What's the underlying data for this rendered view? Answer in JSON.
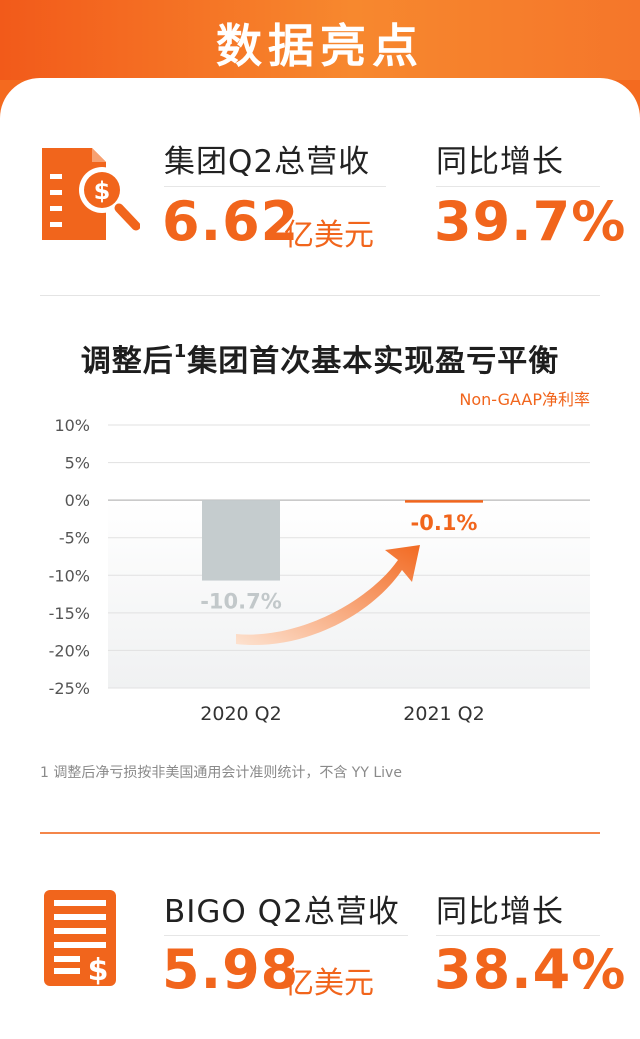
{
  "banner": {
    "title": "数据亮点"
  },
  "group_metric": {
    "label": "集团Q2总营收",
    "value": "6.62",
    "unit": "亿美元",
    "growth_label": "同比增长",
    "growth_value": "39.7%"
  },
  "bigo_metric": {
    "label": "BIGO Q2总营收",
    "value": "5.98",
    "unit": "亿美元",
    "growth_label": "同比增长",
    "growth_value": "38.4%"
  },
  "chart_title": {
    "prefix": "调整后",
    "sup": "1",
    "suffix": "集团首次基本实现盈亏平衡"
  },
  "chart_data": {
    "type": "bar",
    "title": "调整后1集团首次基本实现盈亏平衡",
    "legend": "Non-GAAP净利率",
    "categories": [
      "2020 Q2",
      "2021 Q2"
    ],
    "values": [
      -10.7,
      -0.1
    ],
    "data_labels": [
      "-10.7%",
      "-0.1%"
    ],
    "ylim": [
      -25,
      10
    ],
    "yticks": [
      10,
      5,
      0,
      -5,
      -10,
      -15,
      -20,
      -25
    ],
    "ytick_labels": [
      "10%",
      "5%",
      "0%",
      "-5%",
      "-10%",
      "-15%",
      "-20%",
      "-25%"
    ],
    "colors": [
      "#c5ccce",
      "#f1651c"
    ],
    "label_colors": [
      "#c2c8ca",
      "#f1651c"
    ]
  },
  "footnote": "1  调整后净亏损按非美国通用会计准则统计，不含 YY Live",
  "colors": {
    "accent": "#f1651c",
    "banner": "#f46a1f"
  },
  "icons": {
    "group": "document-dollar-search-icon",
    "bigo": "receipt-dollar-icon"
  }
}
